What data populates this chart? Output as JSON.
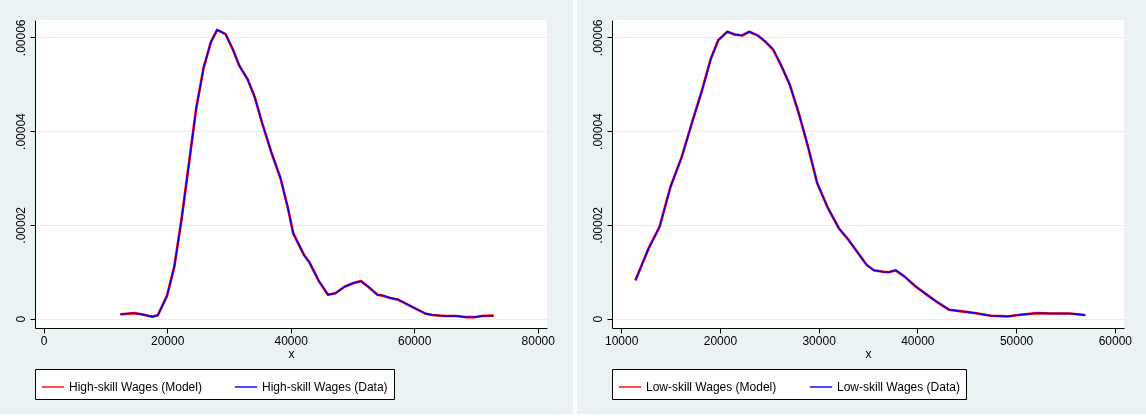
{
  "chart_data": [
    {
      "type": "line",
      "xlabel": "x",
      "xlim": [
        -1400,
        81500
      ],
      "xticks": [
        0,
        20000,
        40000,
        60000,
        80000
      ],
      "ylim": [
        -2e-06,
        6.37e-05
      ],
      "yticks": [
        {
          "value": 0,
          "label": "0"
        },
        {
          "value": 2e-05,
          "label": ".00002"
        },
        {
          "value": 4e-05,
          "label": ".00004"
        },
        {
          "value": 6e-05,
          "label": ".00006"
        }
      ],
      "grid": "y",
      "legend": "bottom",
      "marker": "none",
      "line_style": "solid",
      "x": [
        12560,
        14640,
        15820,
        17600,
        18490,
        19970,
        21160,
        22340,
        23530,
        24710,
        25900,
        27080,
        28090,
        29450,
        30640,
        31700,
        33010,
        34190,
        35380,
        36860,
        38340,
        39530,
        40410,
        42190,
        43080,
        44560,
        46040,
        47230,
        48710,
        50190,
        51380,
        52560,
        54040,
        54930,
        56120,
        57300,
        59670,
        61750,
        62930,
        65010,
        66790,
        68560,
        69750,
        70930,
        72710
      ],
      "series": [
        {
          "name": "High-skill Wages (Model)",
          "color": "#ff0000",
          "values": [
            9.4e-07,
            1.18e-06,
            9.4e-07,
            3.9e-07,
            7.1e-07,
            4.86e-06,
            1.11e-05,
            2.13e-05,
            3.31e-05,
            4.49e-05,
            5.35e-05,
            5.9e-05,
            6.16e-05,
            6.07e-05,
            5.74e-05,
            5.39e-05,
            5.11e-05,
            4.72e-05,
            4.17e-05,
            3.55e-05,
            3e-05,
            2.37e-05,
            1.82e-05,
            1.35e-05,
            1.19e-05,
            8e-06,
            5.1e-06,
            5.4e-06,
            6.8e-06,
            7.6e-06,
            8e-06,
            6.8e-06,
            5.1e-06,
            4.9e-06,
            4.4e-06,
            4.1e-06,
            2.5e-06,
            1.1e-06,
            7.8e-07,
            5.5e-07,
            5.5e-07,
            3.1e-07,
            3.1e-07,
            5.5e-07,
            6.3e-07
          ]
        },
        {
          "name": "High-skill Wages (Data)",
          "color": "#0000ff",
          "values": [
            9.4e-07,
            1.18e-06,
            9.4e-07,
            3.9e-07,
            7.1e-07,
            4.86e-06,
            1.11e-05,
            2.13e-05,
            3.31e-05,
            4.49e-05,
            5.35e-05,
            5.9e-05,
            6.16e-05,
            6.07e-05,
            5.74e-05,
            5.39e-05,
            5.11e-05,
            4.72e-05,
            4.17e-05,
            3.55e-05,
            3e-05,
            2.37e-05,
            1.82e-05,
            1.35e-05,
            1.19e-05,
            8e-06,
            5.1e-06,
            5.4e-06,
            6.8e-06,
            7.6e-06,
            8e-06,
            6.8e-06,
            5.1e-06,
            4.9e-06,
            4.4e-06,
            4.1e-06,
            2.5e-06,
            1.1e-06,
            7.8e-07,
            5.5e-07,
            5.5e-07,
            3.1e-07,
            3.1e-07,
            5.5e-07,
            6.3e-07
          ]
        }
      ]
    },
    {
      "type": "line",
      "xlabel": "x",
      "xlim": [
        9070,
        60930
      ],
      "xticks": [
        10000,
        20000,
        30000,
        40000,
        50000,
        60000
      ],
      "ylim": [
        -2e-06,
        6.37e-05
      ],
      "yticks": [
        {
          "value": 0,
          "label": "0"
        },
        {
          "value": 2e-05,
          "label": ".00002"
        },
        {
          "value": 4e-05,
          "label": ".00004"
        },
        {
          "value": 6e-05,
          "label": ".00006"
        }
      ],
      "grid": "y",
      "legend": "bottom",
      "marker": "none",
      "line_style": "solid",
      "x": [
        11480,
        12780,
        13890,
        15010,
        16120,
        17230,
        18160,
        19090,
        19830,
        20750,
        21500,
        22240,
        22980,
        23910,
        24650,
        25390,
        26140,
        27060,
        27990,
        28910,
        29840,
        30960,
        32070,
        32990,
        33920,
        34850,
        35590,
        36520,
        37070,
        37810,
        38740,
        39860,
        41160,
        42090,
        43200,
        44310,
        45800,
        47460,
        49130,
        50240,
        52100,
        53580,
        55440,
        56920
      ],
      "series": [
        {
          "name": "Low-skill Wages (Model)",
          "color": "#ff0000",
          "values": [
            8.34e-06,
            1.5e-05,
            1.96e-05,
            2.82e-05,
            3.44e-05,
            4.22e-05,
            4.85e-05,
            5.55e-05,
            5.94e-05,
            6.12e-05,
            6.06e-05,
            6.04e-05,
            6.12e-05,
            6.03e-05,
            5.9e-05,
            5.74e-05,
            5.43e-05,
            5e-05,
            4.38e-05,
            3.68e-05,
            2.9e-05,
            2.35e-05,
            1.92e-05,
            1.69e-05,
            1.42e-05,
            1.15e-05,
            1.03e-05,
            1e-05,
            9.9e-06,
            1.03e-05,
            8.9e-06,
            6.8e-06,
            4.8e-06,
            3.4e-06,
            1.9e-06,
            1.6e-06,
            1.2e-06,
            6.2e-07,
            4.7e-07,
            7.8e-07,
            1.17e-06,
            1.09e-06,
            1.09e-06,
            7.8e-07
          ]
        },
        {
          "name": "Low-skill Wages (Data)",
          "color": "#0000ff",
          "values": [
            8.34e-06,
            1.5e-05,
            1.96e-05,
            2.82e-05,
            3.44e-05,
            4.22e-05,
            4.85e-05,
            5.55e-05,
            5.94e-05,
            6.12e-05,
            6.06e-05,
            6.04e-05,
            6.12e-05,
            6.03e-05,
            5.9e-05,
            5.74e-05,
            5.43e-05,
            5e-05,
            4.38e-05,
            3.68e-05,
            2.9e-05,
            2.35e-05,
            1.92e-05,
            1.69e-05,
            1.42e-05,
            1.15e-05,
            1.03e-05,
            1e-05,
            9.9e-06,
            1.03e-05,
            8.9e-06,
            6.8e-06,
            4.8e-06,
            3.4e-06,
            1.9e-06,
            1.6e-06,
            1.2e-06,
            6.2e-07,
            4.7e-07,
            7.8e-07,
            1.17e-06,
            1.09e-06,
            1.09e-06,
            7.8e-07
          ]
        }
      ]
    }
  ]
}
